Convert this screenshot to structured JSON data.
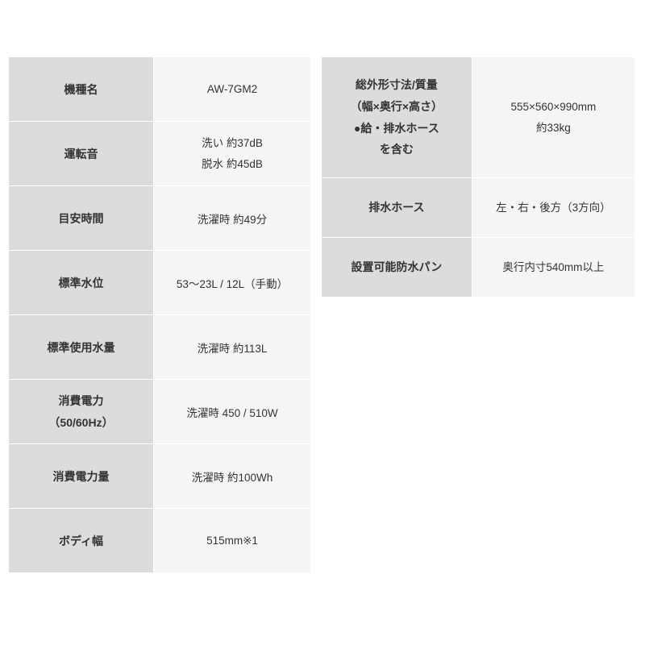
{
  "left_table": {
    "rows": [
      {
        "label": "機種名",
        "value": "AW-7GM2",
        "label_lines": 1,
        "value_lines": 1
      },
      {
        "label": "運転音",
        "value": "洗い 約37dB\n脱水 約45dB",
        "label_lines": 1,
        "value_lines": 2
      },
      {
        "label": "目安時間",
        "value": "洗濯時 約49分",
        "label_lines": 1,
        "value_lines": 1
      },
      {
        "label": "標準水位",
        "value": "53～23L / 12L（手動）",
        "label_lines": 1,
        "value_lines": 1
      },
      {
        "label": "標準使用水量",
        "value": "洗濯時 約113L",
        "label_lines": 1,
        "value_lines": 1
      },
      {
        "label": "消費電力\n（50/60Hz）",
        "value": "洗濯時 450 / 510W",
        "label_lines": 2,
        "value_lines": 1
      },
      {
        "label": "消費電力量",
        "value": "洗濯時 約100Wh",
        "label_lines": 1,
        "value_lines": 1
      },
      {
        "label": "ボディ幅",
        "value": "515mm※1",
        "label_lines": 1,
        "value_lines": 1
      }
    ]
  },
  "right_table": {
    "rows": [
      {
        "label": "総外形寸法/質量\n（幅×奥行×高さ）\n●給・排水ホース\nを含む",
        "value": "555×560×990mm\n約33kg",
        "tall": true
      },
      {
        "label": "排水ホース",
        "value": "左・右・後方（3方向）",
        "tall": false
      },
      {
        "label": "設置可能防水パン",
        "value": "奥行内寸540mm以上",
        "tall": false
      }
    ]
  },
  "colors": {
    "label_bg": "#dcdcdc",
    "value_bg": "#f5f5f5",
    "border": "#ffffff",
    "text": "#333333"
  }
}
